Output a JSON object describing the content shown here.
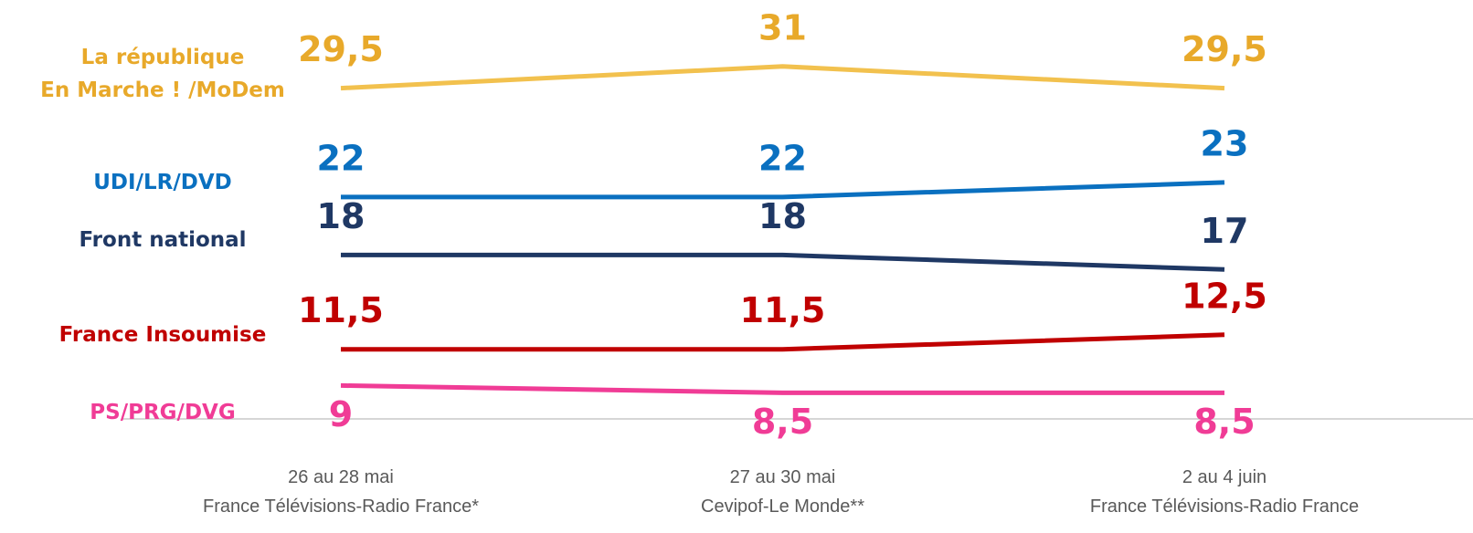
{
  "chart_data": {
    "type": "line",
    "categories": [
      "26 au 28 mai\nFrance Télévisions-Radio France*",
      "27 au 30 mai\nCevipof-Le Monde**",
      "2 au 4 juin\nFrance Télévisions-Radio France"
    ],
    "ylim": [
      5,
      33
    ],
    "series": [
      {
        "name": "La république\nEn Marche ! /MoDem",
        "color": "#f2c14e",
        "label_color": "#e8a92a",
        "label_position": "above",
        "values": [
          29.5,
          31,
          29.5
        ],
        "value_labels": [
          "29,5",
          "31",
          "29,5"
        ]
      },
      {
        "name": "UDI/LR/DVD",
        "color": "#0a70c0",
        "label_color": "#0a70c0",
        "label_position": "above",
        "values": [
          22,
          22,
          23
        ]
      },
      {
        "name": "Front national",
        "color": "#1f3864",
        "label_color": "#1f3864",
        "label_position": "above",
        "values": [
          18,
          18,
          17
        ]
      },
      {
        "name": "France Insoumise",
        "color": "#c00000",
        "label_color": "#c00000",
        "label_position": "above",
        "values": [
          11.5,
          11.5,
          12.5
        ],
        "value_labels": [
          "11,5",
          "11,5",
          "12,5"
        ]
      },
      {
        "name": "PS/PRG/DVG",
        "color": "#f03c96",
        "label_color": "#f03c96",
        "label_position": "below",
        "values": [
          9,
          8.5,
          8.5
        ],
        "value_labels": [
          "9",
          "8,5",
          "8,5"
        ]
      }
    ]
  }
}
